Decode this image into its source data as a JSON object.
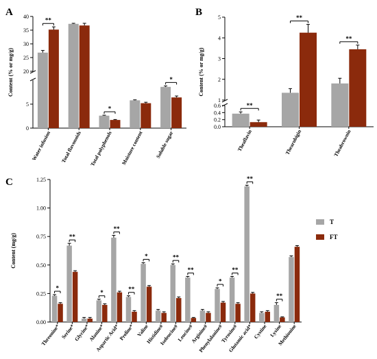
{
  "colors": {
    "T": "#a6a6a6",
    "FT": "#8b2a0c"
  },
  "chart_data": [
    {
      "panel": "A",
      "type": "bar",
      "ylabel": "Content (% or mg/g)",
      "categories": [
        "Water infusion",
        "Total flavonoids",
        "Total polyphenols",
        "Moisture content",
        "Soluble sugar"
      ],
      "yticks": [
        "0",
        "5",
        "20",
        "25",
        "30",
        "35",
        "40"
      ],
      "axis_break": [
        10,
        20
      ],
      "ylim": [
        0,
        40
      ],
      "series": [
        {
          "name": "T",
          "values": [
            26.8,
            37.3,
            2.6,
            5.8,
            8.6
          ],
          "errors": [
            0.8,
            0.2,
            0.1,
            0.1,
            0.2
          ]
        },
        {
          "name": "FT",
          "values": [
            35.2,
            36.7,
            1.7,
            5.2,
            6.4
          ],
          "errors": [
            1.0,
            0.8,
            0.1,
            0.2,
            0.3
          ]
        }
      ],
      "significance": [
        "**",
        "",
        "*",
        "",
        "*"
      ]
    },
    {
      "panel": "B",
      "type": "bar",
      "ylabel": "Content (% or mg/g)",
      "categories": [
        "Theaflavin",
        "Thearubigin",
        "Theabrownin"
      ],
      "yticks": [
        "0.0",
        "0.2",
        "0.4",
        "0.6",
        "1",
        "2",
        "3",
        "4",
        "5"
      ],
      "axis_break": [
        0.6,
        1.0
      ],
      "ylim": [
        0,
        5
      ],
      "series": [
        {
          "name": "T",
          "values": [
            0.37,
            1.35,
            1.8
          ],
          "errors": [
            0.05,
            0.2,
            0.25
          ]
        },
        {
          "name": "FT",
          "values": [
            0.13,
            4.25,
            3.45
          ],
          "errors": [
            0.06,
            0.4,
            0.2
          ]
        }
      ],
      "significance": [
        "**",
        "**",
        "**"
      ]
    },
    {
      "panel": "C",
      "type": "bar",
      "ylabel": "Content (mg/g)",
      "categories": [
        "Threonine*",
        "Serine*",
        "Glycine*",
        "Alanine*",
        "Aspartic Acid*",
        "Proline*",
        "Valine",
        "Histidine#",
        "Isoleucine#",
        "Leucine#",
        "Arginine#",
        "Phenylalanine#",
        "Tyrosine#",
        "Glutamic acid*",
        "Cystine",
        "Lysine",
        "Methionine"
      ],
      "yticks": [
        "0.00",
        "0.25",
        "0.50",
        "0.75",
        "1.00",
        "1.25"
      ],
      "ylim": [
        0,
        1.25
      ],
      "legend": [
        "T",
        "FT"
      ],
      "legend_position": "right",
      "series": [
        {
          "name": "T",
          "values": [
            0.23,
            0.67,
            0.03,
            0.19,
            0.74,
            0.22,
            0.51,
            0.1,
            0.5,
            0.39,
            0.1,
            0.29,
            0.39,
            1.19,
            0.08,
            0.15,
            0.57
          ],
          "errors": [
            0.01,
            0.02,
            0.01,
            0.01,
            0.02,
            0.01,
            0.01,
            0.01,
            0.01,
            0.01,
            0.01,
            0.01,
            0.01,
            0.01,
            0.01,
            0.02,
            0.01
          ]
        },
        {
          "name": "FT",
          "values": [
            0.16,
            0.44,
            0.03,
            0.15,
            0.26,
            0.09,
            0.31,
            0.08,
            0.21,
            0.035,
            0.08,
            0.17,
            0.16,
            0.25,
            0.09,
            0.04,
            0.66
          ],
          "errors": [
            0.01,
            0.01,
            0.01,
            0.01,
            0.01,
            0.01,
            0.01,
            0.01,
            0.01,
            0.005,
            0.01,
            0.01,
            0.01,
            0.01,
            0.01,
            0.005,
            0.01
          ]
        }
      ],
      "significance": [
        "*",
        "**",
        "",
        "*",
        "**",
        "**",
        "*",
        "",
        "**",
        "**",
        "",
        "*",
        "**",
        "**",
        "",
        "**",
        ""
      ]
    }
  ]
}
